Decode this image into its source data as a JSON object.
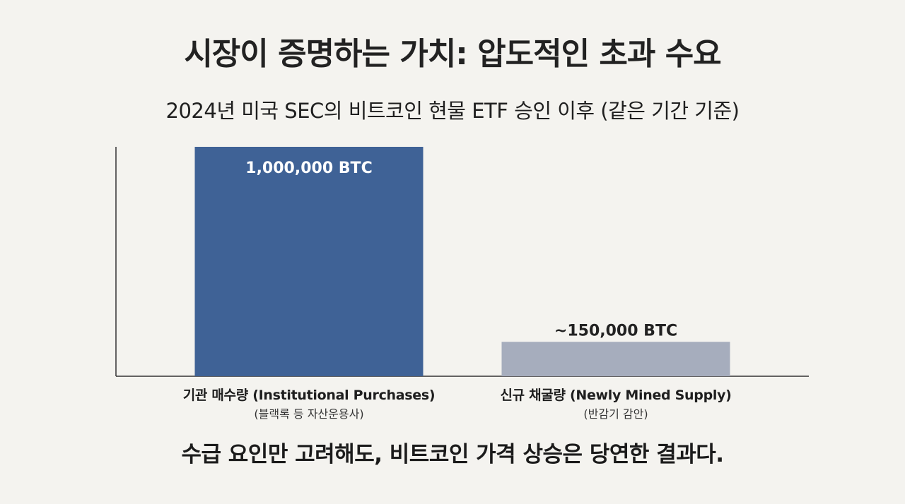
{
  "title": "시장이 증명하는 가치: 압도적인 초과 수요",
  "subtitle": "2024년 미국 SEC의 비트코인 현물 ETF 승인 이후 (같은 기간 기준)",
  "footer": "수급 요인만 고려해도, 비트코인 가격 상승은 당연한 결과다.",
  "colors": {
    "institutional_bar": "#3f6296",
    "mined_bar": "#a6adbd",
    "background": "#f4f3ef",
    "axis": "#333333"
  },
  "chart_data": {
    "type": "bar",
    "categories": [
      "기관 매수량 (Institutional Purchases)",
      "신규 채굴량 (Newly Mined Supply)"
    ],
    "category_sublabels": [
      "(블랙록 등 자산운용사)",
      "(반감기 감안)"
    ],
    "values": [
      1000000,
      150000
    ],
    "data_labels": [
      "1,000,000 BTC",
      "~150,000 BTC"
    ],
    "units": "BTC",
    "ylim": [
      0,
      1000000
    ],
    "grid": false,
    "legend": "none"
  }
}
